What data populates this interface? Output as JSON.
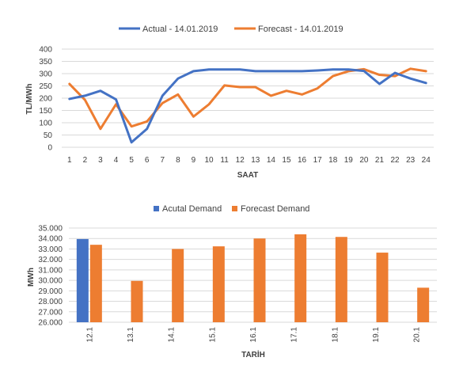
{
  "chart_data": [
    {
      "type": "line",
      "xlabel": "SAAT",
      "ylabel": "TL/MWh",
      "ylim": [
        0,
        400
      ],
      "yticks": [
        "0",
        "50",
        "100",
        "150",
        "200",
        "250",
        "300",
        "350",
        "400"
      ],
      "categories": [
        "1",
        "2",
        "3",
        "4",
        "5",
        "6",
        "7",
        "8",
        "9",
        "10",
        "11",
        "12",
        "13",
        "14",
        "15",
        "16",
        "17",
        "18",
        "19",
        "20",
        "21",
        "22",
        "23",
        "24"
      ],
      "grid": true,
      "legend_position": "top",
      "series": [
        {
          "name": "Actual - 14.01.2019",
          "color": "#4472c4",
          "values": [
            197,
            210,
            230,
            195,
            20,
            75,
            210,
            280,
            310,
            317,
            317,
            317,
            310,
            310,
            310,
            310,
            313,
            317,
            317,
            311,
            258,
            303,
            280,
            262
          ]
        },
        {
          "name": "Forecast - 14.01.2019",
          "color": "#ed7d31",
          "values": [
            258,
            193,
            75,
            175,
            85,
            105,
            180,
            215,
            125,
            175,
            252,
            245,
            245,
            210,
            230,
            215,
            240,
            290,
            310,
            318,
            295,
            290,
            320,
            310
          ]
        }
      ]
    },
    {
      "type": "bar",
      "xlabel": "TARİH",
      "ylabel": "MWh",
      "ylim": [
        26000,
        35000
      ],
      "yticks": [
        "26.000",
        "27.000",
        "28.000",
        "29.000",
        "30.000",
        "31.000",
        "32.000",
        "33.000",
        "34.000",
        "35.000"
      ],
      "categories": [
        "12.1",
        "13.1",
        "14.1",
        "15.1",
        "16.1",
        "17.1",
        "18.1",
        "19.1",
        "20.1"
      ],
      "grid": true,
      "legend_position": "top",
      "series": [
        {
          "name": "Acutal Demand",
          "color": "#4472c4",
          "values": [
            33950,
            null,
            null,
            null,
            null,
            null,
            null,
            null,
            null
          ]
        },
        {
          "name": "Forecast Demand",
          "color": "#ed7d31",
          "values": [
            33400,
            29950,
            33000,
            33250,
            34000,
            34400,
            34150,
            32650,
            29300
          ]
        }
      ]
    }
  ]
}
